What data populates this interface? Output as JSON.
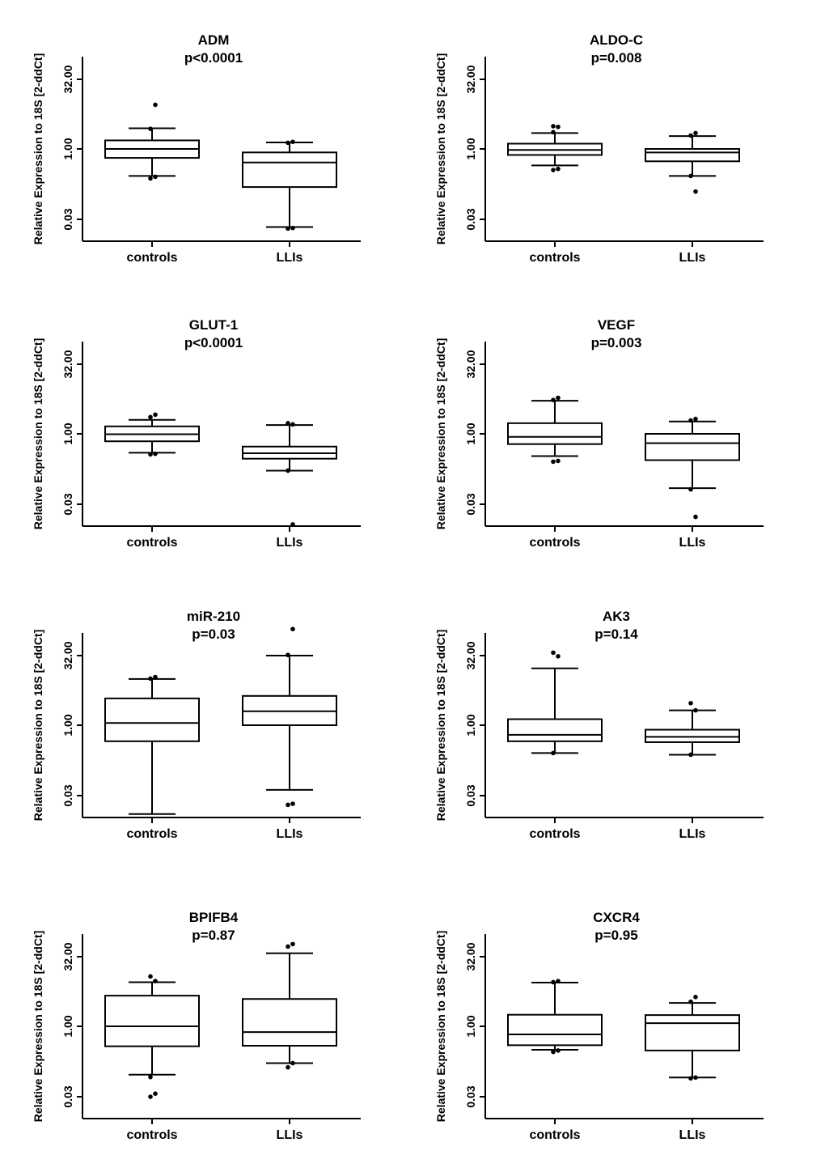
{
  "chart_data": [
    {
      "type": "boxplot",
      "title": "ADM",
      "subtitle": "p<0.0001",
      "ylabel": "Relative Expression to 18S [2-ddCt]",
      "yscale": "log2",
      "yticks": [
        0.03,
        1.0,
        32.0
      ],
      "ytick_labels": [
        "0.03",
        "1.00",
        "32.00"
      ],
      "categories": [
        "controls",
        "LLIs"
      ],
      "series": [
        {
          "name": "controls",
          "whisker_low": 0.26,
          "q1": 0.64,
          "median": 1.0,
          "q3": 1.53,
          "whisker_high": 2.8,
          "outliers": [
            0.23,
            0.25,
            2.72,
            9.0
          ]
        },
        {
          "name": "LLIs",
          "whisker_low": 0.0205,
          "q1": 0.15,
          "median": 0.51,
          "q3": 0.84,
          "whisker_high": 1.38,
          "outliers": [
            0.019,
            0.0195,
            1.36,
            1.42
          ]
        }
      ]
    },
    {
      "type": "boxplot",
      "title": "ALDO-C",
      "subtitle": "p=0.008",
      "ylabel": "Relative Expression to 18S [2-ddCt]",
      "yscale": "log2",
      "yticks": [
        0.03,
        1.0,
        32.0
      ],
      "ytick_labels": [
        "0.03",
        "1.00",
        "32.00"
      ],
      "categories": [
        "controls",
        "LLIs"
      ],
      "series": [
        {
          "name": "controls",
          "whisker_low": 0.44,
          "q1": 0.74,
          "median": 0.95,
          "q3": 1.3,
          "whisker_high": 2.2,
          "outliers": [
            0.35,
            0.37,
            2.3,
            3.0,
            3.1
          ]
        },
        {
          "name": "LLIs",
          "whisker_low": 0.26,
          "q1": 0.54,
          "median": 0.84,
          "q3": 1.0,
          "whisker_high": 1.9,
          "outliers": [
            0.26,
            0.12,
            1.95,
            2.2
          ]
        }
      ]
    },
    {
      "type": "boxplot",
      "title": "GLUT-1",
      "subtitle": "p<0.0001",
      "ylabel": "Relative Expression to 18S [2-ddCt]",
      "yscale": "log2",
      "yticks": [
        0.03,
        1.0,
        32.0
      ],
      "ytick_labels": [
        "0.03",
        "1.00",
        "32.00"
      ],
      "categories": [
        "controls",
        "LLIs"
      ],
      "series": [
        {
          "name": "controls",
          "whisker_low": 0.39,
          "q1": 0.69,
          "median": 0.98,
          "q3": 1.45,
          "whisker_high": 2.0,
          "outliers": [
            0.36,
            0.37,
            2.3,
            2.6
          ]
        },
        {
          "name": "LLIs",
          "whisker_low": 0.16,
          "q1": 0.29,
          "median": 0.38,
          "q3": 0.53,
          "whisker_high": 1.55,
          "outliers": [
            0.16,
            1.6,
            1.7,
            0.011
          ]
        }
      ]
    },
    {
      "type": "boxplot",
      "title": "VEGF",
      "subtitle": "p=0.003",
      "ylabel": "Relative Expression to 18S [2-ddCt]",
      "yscale": "log2",
      "yticks": [
        0.03,
        1.0,
        32.0
      ],
      "ytick_labels": [
        "0.03",
        "1.00",
        "32.00"
      ],
      "categories": [
        "controls",
        "LLIs"
      ],
      "series": [
        {
          "name": "controls",
          "whisker_low": 0.33,
          "q1": 0.6,
          "median": 0.86,
          "q3": 1.7,
          "whisker_high": 5.2,
          "outliers": [
            0.25,
            0.26,
            5.4,
            6.0
          ]
        },
        {
          "name": "LLIs",
          "whisker_low": 0.067,
          "q1": 0.27,
          "median": 0.63,
          "q3": 1.0,
          "whisker_high": 1.85,
          "outliers": [
            0.063,
            0.016,
            1.95,
            2.1
          ]
        }
      ]
    },
    {
      "type": "boxplot",
      "title": "miR-210",
      "subtitle": "p=0.03",
      "ylabel": "Relative Expression to 18S [2-ddCt]",
      "yscale": "log2",
      "yticks": [
        0.03,
        1.0,
        32.0
      ],
      "ytick_labels": [
        "0.03",
        "1.00",
        "32.00"
      ],
      "categories": [
        "controls",
        "LLIs"
      ],
      "series": [
        {
          "name": "controls",
          "whisker_low": 0.012,
          "q1": 0.45,
          "median": 1.12,
          "q3": 3.8,
          "whisker_high": 10.0,
          "outliers": [
            10.2,
            11.0
          ]
        },
        {
          "name": "LLIs",
          "whisker_low": 0.04,
          "q1": 1.0,
          "median": 2.0,
          "q3": 4.3,
          "whisker_high": 32.0,
          "outliers": [
            0.019,
            0.02,
            33.0,
            120.0
          ]
        }
      ]
    },
    {
      "type": "boxplot",
      "title": "AK3",
      "subtitle": "p=0.14",
      "ylabel": "Relative Expression to 18S [2-ddCt]",
      "yscale": "log2",
      "yticks": [
        0.03,
        1.0,
        32.0
      ],
      "ytick_labels": [
        "0.03",
        "1.00",
        "32.00"
      ],
      "categories": [
        "controls",
        "LLIs"
      ],
      "series": [
        {
          "name": "controls",
          "whisker_low": 0.25,
          "q1": 0.45,
          "median": 0.62,
          "q3": 1.35,
          "whisker_high": 17.0,
          "outliers": [
            0.25,
            31.0,
            37.0
          ]
        },
        {
          "name": "LLIs",
          "whisker_low": 0.23,
          "q1": 0.43,
          "median": 0.56,
          "q3": 0.8,
          "whisker_high": 2.1,
          "outliers": [
            0.23,
            2.1,
            3.0
          ]
        }
      ]
    },
    {
      "type": "boxplot",
      "title": "BPIFB4",
      "subtitle": "p=0.87",
      "ylabel": "Relative Expression to 18S [2-ddCt]",
      "yscale": "log2",
      "yticks": [
        0.03,
        1.0,
        32.0
      ],
      "ytick_labels": [
        "0.03",
        "1.00",
        "32.00"
      ],
      "categories": [
        "controls",
        "LLIs"
      ],
      "series": [
        {
          "name": "controls",
          "whisker_low": 0.09,
          "q1": 0.37,
          "median": 1.0,
          "q3": 4.6,
          "whisker_high": 9.0,
          "outliers": [
            0.08,
            0.035,
            0.03,
            9.5,
            12.0
          ]
        },
        {
          "name": "LLIs",
          "whisker_low": 0.16,
          "q1": 0.38,
          "median": 0.75,
          "q3": 3.9,
          "whisker_high": 38.0,
          "outliers": [
            0.13,
            0.16,
            53.0,
            60.0
          ]
        }
      ]
    },
    {
      "type": "boxplot",
      "title": "CXCR4",
      "subtitle": "p=0.95",
      "ylabel": "Relative Expression to 18S [2-ddCt]",
      "yscale": "log2",
      "yticks": [
        0.03,
        1.0,
        32.0
      ],
      "ytick_labels": [
        "0.03",
        "1.00",
        "32.00"
      ],
      "categories": [
        "controls",
        "LLIs"
      ],
      "series": [
        {
          "name": "controls",
          "whisker_low": 0.31,
          "q1": 0.39,
          "median": 0.67,
          "q3": 1.78,
          "whisker_high": 8.8,
          "outliers": [
            0.28,
            0.3,
            9.0,
            9.5
          ]
        },
        {
          "name": "LLIs",
          "whisker_low": 0.078,
          "q1": 0.3,
          "median": 1.17,
          "q3": 1.75,
          "whisker_high": 3.2,
          "outliers": [
            0.075,
            0.078,
            3.4,
            4.3
          ]
        }
      ]
    }
  ]
}
